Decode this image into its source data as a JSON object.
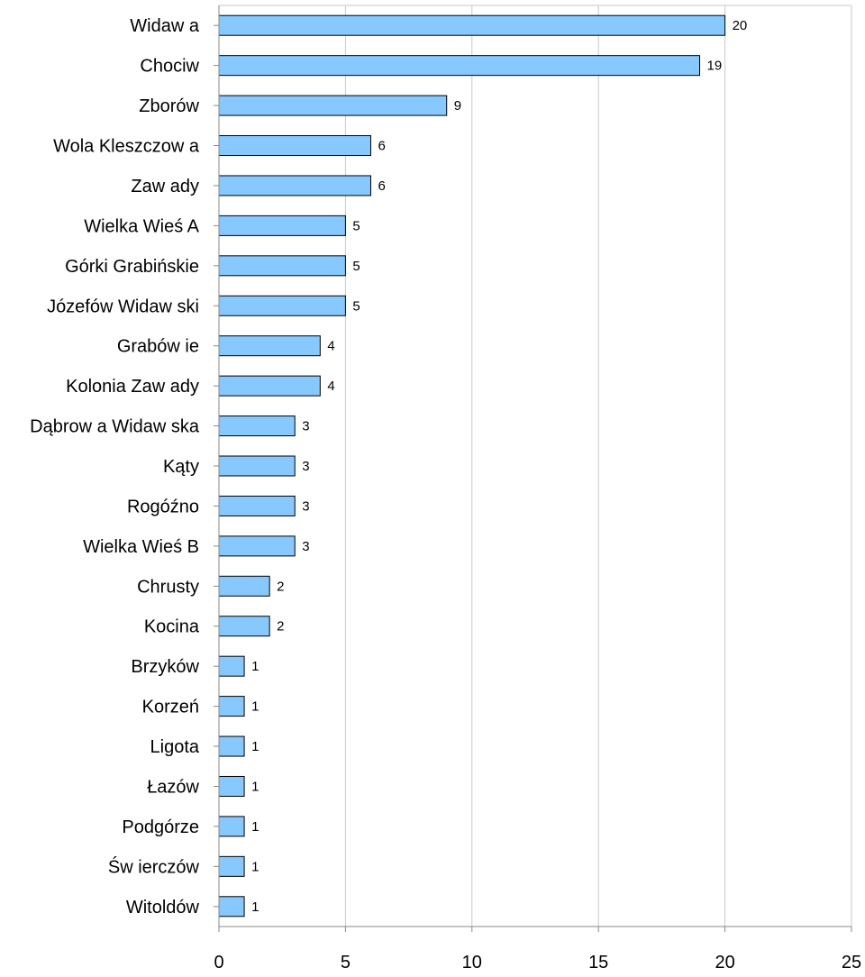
{
  "chart_data": {
    "type": "bar",
    "orientation": "horizontal",
    "title": "",
    "xlabel": "",
    "ylabel": "",
    "xlim": [
      0,
      25
    ],
    "x_ticks": [
      0,
      5,
      10,
      15,
      20,
      25
    ],
    "grid": "vertical",
    "legend": "none",
    "bar_color": "#87c8ff",
    "bar_stroke": "#000000",
    "categories": [
      "Widaw a",
      "Chociw",
      "Zborów",
      "Wola Kleszczow a",
      "Zaw ady",
      "Wielka Wieś A",
      "Górki Grabińskie",
      "Józefów  Widaw ski",
      "Grabów ie",
      "Kolonia Zaw ady",
      "Dąbrow a Widaw ska",
      "Kąty",
      "Rogóźno",
      "Wielka Wieś B",
      "Chrusty",
      "Kocina",
      "Brzyków",
      "Korzeń",
      "Ligota",
      "Łazów",
      "Podgórze",
      "Św ierczów",
      "Witoldów"
    ],
    "values": [
      20,
      19,
      9,
      6,
      6,
      5,
      5,
      5,
      4,
      4,
      3,
      3,
      3,
      3,
      2,
      2,
      1,
      1,
      1,
      1,
      1,
      1,
      1
    ]
  }
}
